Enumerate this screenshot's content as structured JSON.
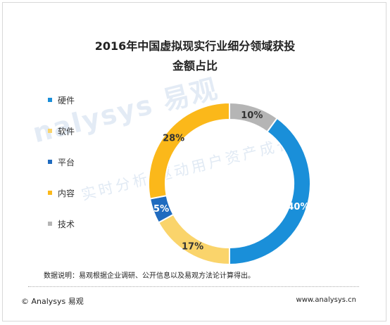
{
  "chart_data": {
    "type": "pie",
    "title_line1": "2016年中国虚拟现实行业细分领域获投",
    "title_line2": "金额占比",
    "categories": [
      "硬件",
      "软件",
      "平台",
      "内容",
      "技术"
    ],
    "values": [
      40,
      17,
      5,
      28,
      10
    ],
    "value_labels": [
      "40%",
      "17%",
      "5%",
      "28%",
      "10%"
    ],
    "colors": [
      "#1a8fd9",
      "#fad46b",
      "#1f6bbf",
      "#fbb81a",
      "#b5b5b5"
    ],
    "label_colors": [
      "#ffffff",
      "#333333",
      "#ffffff",
      "#333333",
      "#333333"
    ],
    "donut": true,
    "legend_position": "left"
  },
  "watermark": {
    "main": "nalysys 易观",
    "sub": "实时分析 驱动用户资产成长"
  },
  "footer": {
    "note": "数据说明：易观根据企业调研、公开信息以及易观方法论计算得出。",
    "copyright": "© Analysys 易观",
    "site": "www.analysys.cn"
  }
}
